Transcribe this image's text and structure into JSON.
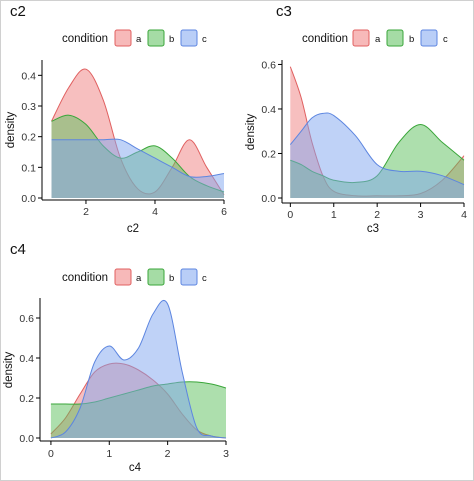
{
  "legend_title": "condition",
  "colors": {
    "a": "#f08080",
    "b": "#5bbf5b",
    "c": "#7fa6f0"
  },
  "stroke_colors": {
    "a": "#e06060",
    "b": "#3aa63a",
    "c": "#5d86e0"
  },
  "chart_data": [
    {
      "type": "area",
      "title": "c2",
      "xlabel": "c2",
      "ylabel": "density",
      "xlim": [
        0.9,
        6
      ],
      "ylim": [
        0,
        0.45
      ],
      "x_ticks": [
        "2",
        "4",
        "6"
      ],
      "y_ticks": [
        "0.0",
        "0.1",
        "0.2",
        "0.3",
        "0.4"
      ],
      "series": [
        {
          "name": "a",
          "x": [
            1,
            1.5,
            2,
            2.5,
            3,
            3.5,
            4,
            4.5,
            5,
            5.5,
            6
          ],
          "y": [
            0.25,
            0.36,
            0.42,
            0.32,
            0.13,
            0.03,
            0.02,
            0.1,
            0.19,
            0.1,
            0.01
          ]
        },
        {
          "name": "b",
          "x": [
            1,
            1.5,
            2,
            2.5,
            3,
            3.5,
            4,
            4.5,
            5,
            5.5,
            6
          ],
          "y": [
            0.25,
            0.27,
            0.24,
            0.17,
            0.13,
            0.15,
            0.17,
            0.13,
            0.07,
            0.04,
            0.02
          ]
        },
        {
          "name": "c",
          "x": [
            1,
            1.5,
            2,
            2.5,
            3,
            3.5,
            4,
            4.5,
            5,
            5.5,
            6
          ],
          "y": [
            0.19,
            0.19,
            0.19,
            0.19,
            0.19,
            0.16,
            0.13,
            0.1,
            0.07,
            0.07,
            0.08
          ]
        }
      ]
    },
    {
      "type": "area",
      "title": "c3",
      "xlabel": "c3",
      "ylabel": "density",
      "xlim": [
        -0.1,
        4
      ],
      "ylim": [
        0,
        0.62
      ],
      "x_ticks": [
        "0",
        "1",
        "2",
        "3",
        "4"
      ],
      "y_ticks": [
        "0.0",
        "0.2",
        "0.4",
        "0.6"
      ],
      "series": [
        {
          "name": "a",
          "x": [
            0,
            0.25,
            0.5,
            0.75,
            1,
            1.5,
            2,
            2.5,
            3,
            3.5,
            4
          ],
          "y": [
            0.59,
            0.45,
            0.25,
            0.1,
            0.03,
            0.01,
            0.01,
            0.01,
            0.02,
            0.08,
            0.19
          ]
        },
        {
          "name": "b",
          "x": [
            0,
            0.25,
            0.5,
            0.75,
            1,
            1.5,
            2,
            2.5,
            3,
            3.5,
            4
          ],
          "y": [
            0.17,
            0.15,
            0.12,
            0.1,
            0.08,
            0.07,
            0.1,
            0.25,
            0.33,
            0.25,
            0.17
          ]
        },
        {
          "name": "c",
          "x": [
            0,
            0.25,
            0.5,
            0.75,
            1,
            1.5,
            2,
            2.5,
            3,
            3.5,
            4
          ],
          "y": [
            0.24,
            0.3,
            0.36,
            0.38,
            0.37,
            0.28,
            0.15,
            0.12,
            0.12,
            0.1,
            0.06
          ]
        }
      ]
    },
    {
      "type": "area",
      "title": "c4",
      "xlabel": "c4",
      "ylabel": "density",
      "xlim": [
        -0.05,
        3
      ],
      "ylim": [
        0,
        0.7
      ],
      "x_ticks": [
        "0",
        "1",
        "2",
        "3"
      ],
      "y_ticks": [
        "0.0",
        "0.2",
        "0.4",
        "0.6"
      ],
      "series": [
        {
          "name": "a",
          "x": [
            0,
            0.25,
            0.5,
            0.75,
            1,
            1.25,
            1.5,
            1.75,
            2,
            2.25,
            2.5,
            2.75,
            3
          ],
          "y": [
            0.02,
            0.1,
            0.22,
            0.33,
            0.37,
            0.37,
            0.34,
            0.29,
            0.22,
            0.12,
            0.04,
            0.01,
            0.0
          ]
        },
        {
          "name": "b",
          "x": [
            0,
            0.25,
            0.5,
            0.75,
            1,
            1.25,
            1.5,
            1.75,
            2,
            2.25,
            2.5,
            2.75,
            3
          ],
          "y": [
            0.17,
            0.17,
            0.17,
            0.18,
            0.2,
            0.22,
            0.24,
            0.26,
            0.27,
            0.28,
            0.28,
            0.27,
            0.25
          ]
        },
        {
          "name": "c",
          "x": [
            0,
            0.25,
            0.5,
            0.75,
            1,
            1.25,
            1.5,
            1.75,
            2,
            2.25,
            2.5,
            2.75,
            3
          ],
          "y": [
            0.0,
            0.03,
            0.15,
            0.38,
            0.46,
            0.39,
            0.45,
            0.62,
            0.67,
            0.33,
            0.05,
            0.01,
            0.0
          ]
        }
      ]
    }
  ]
}
